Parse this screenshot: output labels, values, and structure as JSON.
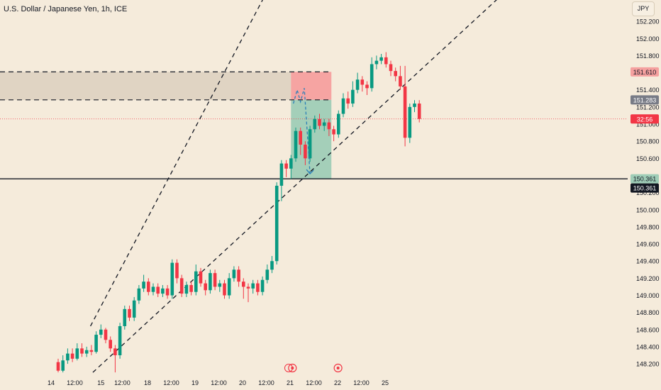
{
  "header": {
    "title": "U.S. Dollar / Japanese Yen, 1h, ICE",
    "currency": "JPY"
  },
  "chart_data": {
    "type": "candlestick",
    "title": "U.S. Dollar / Japanese Yen, 1h, ICE",
    "ylim": [
      148.06,
      152.35
    ],
    "y_ticks": [
      148.2,
      148.4,
      148.6,
      148.8,
      149.0,
      149.2,
      149.4,
      149.6,
      149.8,
      150.0,
      150.2,
      150.6,
      150.8,
      151.0,
      151.2,
      151.4,
      151.8,
      152.0,
      152.2
    ],
    "x_ticks": [
      {
        "label": "14",
        "t": -1.5
      },
      {
        "label": "12:00",
        "t": 3.5
      },
      {
        "label": "15",
        "t": 9
      },
      {
        "label": "12:00",
        "t": 13.5
      },
      {
        "label": "18",
        "t": 18.8
      },
      {
        "label": "12:00",
        "t": 23.8
      },
      {
        "label": "19",
        "t": 28.8
      },
      {
        "label": "12:00",
        "t": 33.8
      },
      {
        "label": "20",
        "t": 38.8
      },
      {
        "label": "12:00",
        "t": 43.8
      },
      {
        "label": "21",
        "t": 48.8
      },
      {
        "label": "12:00",
        "t": 53.8
      },
      {
        "label": "22",
        "t": 58.8
      },
      {
        "label": "12:00",
        "t": 63.8
      },
      {
        "label": "25",
        "t": 68.8
      }
    ],
    "candles": [
      [
        148.22,
        148.12,
        148.26,
        148.1
      ],
      [
        148.12,
        148.24,
        148.3,
        148.1
      ],
      [
        148.24,
        148.32,
        148.38,
        148.2
      ],
      [
        148.32,
        148.26,
        148.38,
        148.22
      ],
      [
        148.26,
        148.38,
        148.44,
        148.24
      ],
      [
        148.38,
        148.32,
        148.44,
        148.28
      ],
      [
        148.32,
        148.36,
        148.4,
        148.28
      ],
      [
        148.36,
        148.34,
        148.42,
        148.3
      ],
      [
        148.34,
        148.54,
        148.58,
        148.32
      ],
      [
        148.54,
        148.6,
        148.66,
        148.5
      ],
      [
        148.6,
        148.48,
        148.62,
        148.44
      ],
      [
        148.48,
        148.38,
        148.52,
        148.34
      ],
      [
        148.38,
        148.3,
        148.42,
        148.1
      ],
      [
        148.3,
        148.64,
        148.68,
        148.26
      ],
      [
        148.64,
        148.84,
        148.88,
        148.6
      ],
      [
        148.84,
        148.74,
        148.88,
        148.7
      ],
      [
        148.74,
        148.94,
        148.98,
        148.7
      ],
      [
        148.94,
        149.08,
        149.12,
        148.9
      ],
      [
        149.08,
        149.16,
        149.24,
        149.04
      ],
      [
        149.16,
        149.04,
        149.2,
        149.0
      ],
      [
        149.04,
        149.1,
        149.14,
        149.0
      ],
      [
        149.1,
        149.02,
        149.14,
        148.98
      ],
      [
        149.02,
        149.08,
        149.12,
        148.98
      ],
      [
        149.08,
        149.0,
        149.12,
        148.96
      ],
      [
        149.0,
        149.38,
        149.42,
        148.96
      ],
      [
        149.38,
        149.2,
        149.42,
        149.14
      ],
      [
        149.2,
        149.02,
        149.24,
        148.98
      ],
      [
        149.02,
        149.12,
        149.16,
        148.98
      ],
      [
        149.12,
        149.04,
        149.16,
        149.0
      ],
      [
        149.04,
        149.28,
        149.36,
        149.0
      ],
      [
        149.28,
        149.14,
        149.32,
        149.1
      ],
      [
        149.14,
        149.06,
        149.18,
        149.0
      ],
      [
        149.06,
        149.26,
        149.3,
        149.02
      ],
      [
        149.26,
        149.1,
        149.3,
        149.06
      ],
      [
        149.1,
        149.14,
        149.18,
        149.04
      ],
      [
        149.14,
        149.0,
        149.18,
        148.96
      ],
      [
        149.0,
        149.2,
        149.26,
        148.96
      ],
      [
        149.2,
        149.3,
        149.34,
        149.16
      ],
      [
        149.3,
        149.16,
        149.34,
        149.1
      ],
      [
        149.16,
        149.1,
        149.2,
        148.96
      ],
      [
        149.1,
        149.08,
        149.14,
        148.92
      ],
      [
        149.08,
        149.14,
        149.18,
        149.02
      ],
      [
        149.14,
        149.04,
        149.18,
        149.0
      ],
      [
        149.04,
        149.18,
        149.22,
        149.0
      ],
      [
        149.18,
        149.3,
        149.36,
        149.14
      ],
      [
        149.3,
        149.4,
        149.46,
        149.26
      ],
      [
        149.4,
        150.28,
        150.32,
        149.36
      ],
      [
        150.28,
        150.54,
        150.58,
        150.1
      ],
      [
        150.54,
        150.48,
        150.58,
        150.38
      ],
      [
        150.48,
        150.6,
        150.64,
        150.36
      ],
      [
        150.6,
        150.92,
        150.96,
        150.56
      ],
      [
        150.92,
        150.76,
        150.96,
        150.64
      ],
      [
        150.76,
        150.6,
        150.8,
        150.52
      ],
      [
        150.6,
        150.94,
        150.98,
        150.56
      ],
      [
        150.94,
        151.06,
        151.1,
        150.9
      ],
      [
        151.06,
        150.98,
        151.12,
        150.94
      ],
      [
        150.98,
        151.02,
        151.06,
        150.92
      ],
      [
        151.02,
        150.94,
        151.06,
        150.86
      ],
      [
        150.94,
        150.88,
        150.98,
        150.8
      ],
      [
        150.88,
        151.12,
        151.16,
        150.84
      ],
      [
        151.12,
        151.3,
        151.36,
        151.08
      ],
      [
        151.3,
        151.24,
        151.38,
        151.18
      ],
      [
        151.24,
        151.4,
        151.5,
        151.2
      ],
      [
        151.4,
        151.52,
        151.6,
        151.36
      ],
      [
        151.52,
        151.46,
        151.56,
        151.38
      ],
      [
        151.46,
        151.42,
        151.5,
        151.34
      ],
      [
        151.42,
        151.7,
        151.78,
        151.38
      ],
      [
        151.7,
        151.74,
        151.8,
        151.64
      ],
      [
        151.74,
        151.78,
        151.82,
        151.7
      ],
      [
        151.78,
        151.7,
        151.84,
        151.66
      ],
      [
        151.7,
        151.62,
        151.74,
        151.56
      ],
      [
        151.62,
        151.56,
        151.66,
        151.5
      ],
      [
        151.56,
        151.44,
        151.68,
        151.4
      ],
      [
        151.44,
        150.84,
        151.68,
        150.74
      ],
      [
        150.84,
        151.2,
        151.24,
        150.78
      ],
      [
        151.2,
        151.24,
        151.28,
        151.14
      ],
      [
        151.24,
        151.06,
        151.28,
        151.02
      ]
    ],
    "channel_upper": [
      [
        148.64,
        6.8
      ],
      [
        152.48,
        43.3
      ]
    ],
    "channel_lower": [
      [
        148.1,
        7.3
      ],
      [
        151.26,
        69.0
      ]
    ],
    "zone_top": 151.61,
    "zone_bottom": 151.283,
    "support": 150.361,
    "current_price": 151.06,
    "position": {
      "entry": 151.283,
      "stop": 151.61,
      "target": 150.361,
      "t_start": 49,
      "t_end": 57.5
    },
    "projection": [
      [
        49.5,
        151.24
      ],
      [
        50.3,
        151.4
      ],
      [
        51.0,
        151.26
      ],
      [
        51.8,
        151.42
      ],
      [
        53.0,
        150.42
      ]
    ],
    "labels": {
      "zone_top": "151.610",
      "zone_bottom": "151.283",
      "countdown": "32:56",
      "support": "150.361"
    },
    "colors": {
      "up": "#089981",
      "down": "#f23645",
      "support_label": "#131722",
      "zone_label": "#787b86"
    }
  }
}
